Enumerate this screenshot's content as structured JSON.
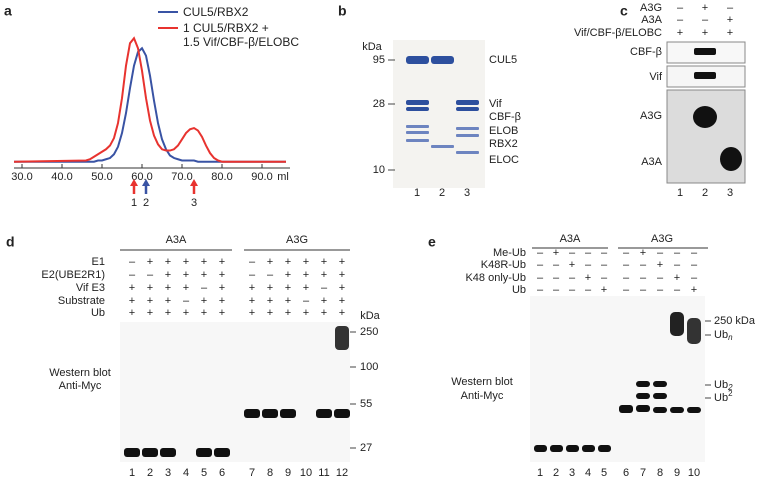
{
  "chart_data": {
    "type": "line",
    "x": [
      28,
      46,
      47,
      48,
      49,
      50,
      51,
      52,
      53,
      54,
      55,
      56,
      57,
      58,
      59,
      60,
      61,
      62,
      63,
      64,
      65,
      66,
      67,
      68,
      69,
      70,
      71,
      72,
      73,
      74,
      75,
      76,
      77,
      78,
      79,
      80,
      96
    ],
    "series": [
      {
        "name": "CUL5/RBX2",
        "color": "#3953a4",
        "values": [
          1,
          1,
          1,
          1,
          2,
          2,
          3,
          4,
          7,
          13,
          24,
          40,
          60,
          78,
          89,
          92,
          86,
          70,
          50,
          32,
          19,
          11,
          6,
          4,
          3,
          2,
          2,
          2,
          2,
          1,
          1,
          1,
          1,
          1,
          1,
          1,
          1
        ]
      },
      {
        "name": "1 CUL5/RBX2 +\n1.5 Vif/CBF-β/ELOBC",
        "color": "#e8332f",
        "values": [
          1,
          2,
          3,
          5,
          7,
          9,
          11,
          14,
          20,
          32,
          52,
          78,
          96,
          100,
          92,
          74,
          52,
          34,
          22,
          15,
          11,
          10,
          10,
          11,
          14,
          19,
          24,
          27,
          28,
          26,
          21,
          14,
          8,
          4,
          2,
          1,
          1
        ]
      }
    ],
    "xlim": [
      28,
      97
    ],
    "ylim": [
      -4,
      105
    ],
    "xticks": [
      {
        "value": 30,
        "label": "30.0"
      },
      {
        "value": 40,
        "label": "40.0"
      },
      {
        "value": 50,
        "label": "50.0"
      },
      {
        "value": 60,
        "label": "60.0"
      },
      {
        "value": 70,
        "label": "70.0"
      },
      {
        "value": 80,
        "label": "80.0"
      },
      {
        "value": 90,
        "label": "90.0"
      }
    ],
    "x_label": "ml",
    "annotations": [
      {
        "x": 58,
        "label": "1",
        "color": "#e8332f"
      },
      {
        "x": 61,
        "label": "2",
        "color": "#3953a4"
      },
      {
        "x": 73,
        "label": "3",
        "color": "#e8332f"
      }
    ]
  },
  "panel_labels": [
    "a",
    "b",
    "c",
    "d",
    "e"
  ],
  "panel_b": {
    "kda": "kDa",
    "markers": [
      "95",
      "28",
      "10"
    ],
    "bands": [
      "CUL5",
      "Vif",
      "CBF-β",
      "ELOB",
      "RBX2",
      "ELOC"
    ],
    "lanes": [
      "1",
      "2",
      "3"
    ]
  },
  "panel_c": {
    "rows": [
      {
        "label": "A3G",
        "signs": [
          "–",
          "+",
          "–"
        ]
      },
      {
        "label": "A3A",
        "signs": [
          "–",
          "–",
          "+"
        ]
      },
      {
        "label": "Vif/CBF-β/ELOBC",
        "signs": [
          "+",
          "+",
          "+"
        ]
      }
    ],
    "blots": [
      "CBF-β",
      "Vif",
      "A3G",
      "A3A"
    ],
    "lanes": [
      "1",
      "2",
      "3"
    ]
  },
  "panel_d": {
    "groups": [
      "A3A",
      "A3G"
    ],
    "rows": [
      {
        "label": "E1",
        "signs": [
          "–",
          "+",
          "+",
          "+",
          "+",
          "+",
          "–",
          "+",
          "+",
          "+",
          "+",
          "+"
        ]
      },
      {
        "label": "E2(UBE2R1)",
        "signs": [
          "–",
          "–",
          "+",
          "+",
          "+",
          "+",
          "–",
          "–",
          "+",
          "+",
          "+",
          "+"
        ]
      },
      {
        "label": "Vif E3",
        "signs": [
          "+",
          "+",
          "+",
          "+",
          "–",
          "+",
          "+",
          "+",
          "+",
          "+",
          "–",
          "+"
        ]
      },
      {
        "label": "Substrate",
        "signs": [
          "+",
          "+",
          "+",
          "–",
          "+",
          "+",
          "+",
          "+",
          "+",
          "–",
          "+",
          "+"
        ]
      },
      {
        "label": "Ub",
        "signs": [
          "+",
          "+",
          "+",
          "+",
          "+",
          "+",
          "+",
          "+",
          "+",
          "+",
          "+",
          "+"
        ]
      }
    ],
    "method": [
      "Western blot",
      "Anti-Myc"
    ],
    "kda": "kDa",
    "markers": [
      "250",
      "100",
      "55",
      "27"
    ],
    "lanes": [
      "1",
      "2",
      "3",
      "4",
      "5",
      "6",
      "7",
      "8",
      "9",
      "10",
      "11",
      "12"
    ]
  },
  "panel_e": {
    "groups": [
      "A3A",
      "A3G"
    ],
    "rows": [
      {
        "label": "Me-Ub",
        "signs": [
          "–",
          "+",
          "–",
          "–",
          "–",
          "–",
          "+",
          "–",
          "–",
          "–"
        ]
      },
      {
        "label": "K48R-Ub",
        "signs": [
          "–",
          "–",
          "+",
          "–",
          "–",
          "–",
          "–",
          "+",
          "–",
          "–"
        ]
      },
      {
        "label": "K48 only-Ub",
        "signs": [
          "–",
          "–",
          "–",
          "+",
          "–",
          "–",
          "–",
          "–",
          "+",
          "–"
        ]
      },
      {
        "label": "Ub",
        "signs": [
          "–",
          "–",
          "–",
          "–",
          "+",
          "–",
          "–",
          "–",
          "–",
          "+"
        ]
      }
    ],
    "method": [
      "Western blot",
      "Anti-Myc"
    ],
    "size_labels": [
      {
        "base": "250 kDa"
      },
      {
        "base": "Ub",
        "sub": "n"
      },
      {
        "base": "Ub",
        "sub": "2"
      },
      {
        "base": "Ub",
        "sup": "2"
      }
    ],
    "lanes": [
      "1",
      "2",
      "3",
      "4",
      "5",
      "6",
      "7",
      "8",
      "9",
      "10"
    ]
  }
}
